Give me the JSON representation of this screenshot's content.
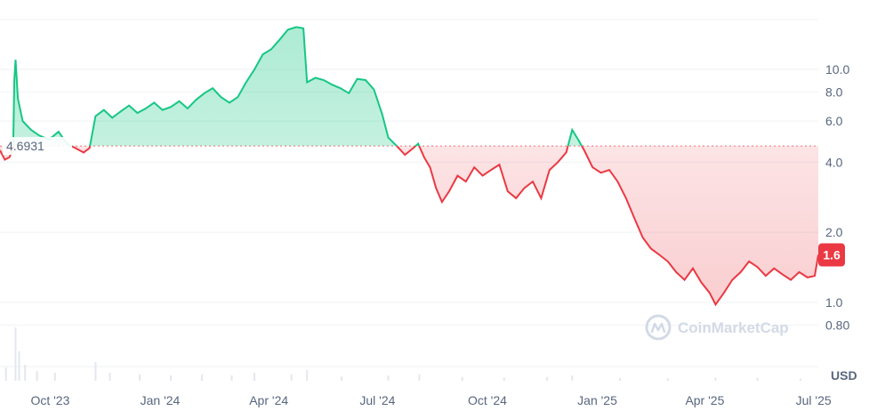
{
  "chart_data": {
    "type": "area",
    "baseline": {
      "value": 4.6931,
      "label": "4.6931"
    },
    "current_price": {
      "value": 1.6,
      "label": "1.6"
    },
    "y_axis": {
      "scale": "log",
      "ticks": [
        {
          "value": 10.0,
          "label": "10.0"
        },
        {
          "value": 8.0,
          "label": "8.0"
        },
        {
          "value": 6.0,
          "label": "6.0"
        },
        {
          "value": 4.0,
          "label": "4.0"
        },
        {
          "value": 2.0,
          "label": "2.0"
        },
        {
          "value": 1.0,
          "label": "1.0"
        },
        {
          "value": 0.8,
          "label": "0.80"
        }
      ],
      "unit": "USD"
    },
    "x_axis": {
      "ticks": [
        "Oct '23",
        "Jan '24",
        "Apr '24",
        "Jul '24",
        "Oct '24",
        "Jan '25",
        "Apr '25",
        "Jul '25"
      ]
    },
    "x_range": [
      "2023-08-20",
      "2025-07-05"
    ],
    "series": [
      {
        "points": [
          [
            "2023-08-20",
            4.5
          ],
          [
            "2023-08-24",
            4.1
          ],
          [
            "2023-08-28",
            4.2
          ],
          [
            "2023-08-31",
            4.6
          ],
          [
            "2023-09-01",
            9.0
          ],
          [
            "2023-09-02",
            11.0
          ],
          [
            "2023-09-04",
            7.5
          ],
          [
            "2023-09-08",
            6.0
          ],
          [
            "2023-09-15",
            5.5
          ],
          [
            "2023-09-22",
            5.2
          ],
          [
            "2023-09-30",
            5.0
          ],
          [
            "2023-10-08",
            5.4
          ],
          [
            "2023-10-15",
            4.8
          ],
          [
            "2023-10-22",
            4.6
          ],
          [
            "2023-10-29",
            4.4
          ],
          [
            "2023-11-03",
            4.6
          ],
          [
            "2023-11-08",
            6.3
          ],
          [
            "2023-11-15",
            6.7
          ],
          [
            "2023-11-22",
            6.2
          ],
          [
            "2023-11-29",
            6.6
          ],
          [
            "2023-12-06",
            7.0
          ],
          [
            "2023-12-13",
            6.5
          ],
          [
            "2023-12-20",
            6.8
          ],
          [
            "2023-12-27",
            7.2
          ],
          [
            "2024-01-03",
            6.7
          ],
          [
            "2024-01-10",
            6.9
          ],
          [
            "2024-01-17",
            7.3
          ],
          [
            "2024-01-24",
            6.8
          ],
          [
            "2024-01-31",
            7.4
          ],
          [
            "2024-02-07",
            7.9
          ],
          [
            "2024-02-14",
            8.3
          ],
          [
            "2024-02-21",
            7.6
          ],
          [
            "2024-02-28",
            7.2
          ],
          [
            "2024-03-06",
            7.6
          ],
          [
            "2024-03-13",
            8.8
          ],
          [
            "2024-03-20",
            10.0
          ],
          [
            "2024-03-27",
            11.6
          ],
          [
            "2024-04-03",
            12.2
          ],
          [
            "2024-04-10",
            13.4
          ],
          [
            "2024-04-17",
            14.8
          ],
          [
            "2024-04-24",
            15.2
          ],
          [
            "2024-04-30",
            15.0
          ],
          [
            "2024-05-03",
            8.8
          ],
          [
            "2024-05-10",
            9.2
          ],
          [
            "2024-05-17",
            9.0
          ],
          [
            "2024-05-24",
            8.6
          ],
          [
            "2024-05-31",
            8.3
          ],
          [
            "2024-06-07",
            7.9
          ],
          [
            "2024-06-14",
            9.1
          ],
          [
            "2024-06-21",
            9.0
          ],
          [
            "2024-06-28",
            8.2
          ],
          [
            "2024-07-05",
            6.4
          ],
          [
            "2024-07-10",
            5.1
          ],
          [
            "2024-07-17",
            4.7
          ],
          [
            "2024-07-24",
            4.3
          ],
          [
            "2024-07-31",
            4.6
          ],
          [
            "2024-08-04",
            4.8
          ],
          [
            "2024-08-09",
            4.2
          ],
          [
            "2024-08-14",
            3.8
          ],
          [
            "2024-08-19",
            3.1
          ],
          [
            "2024-08-24",
            2.7
          ],
          [
            "2024-08-30",
            3.0
          ],
          [
            "2024-09-06",
            3.5
          ],
          [
            "2024-09-13",
            3.3
          ],
          [
            "2024-09-20",
            3.8
          ],
          [
            "2024-09-27",
            3.5
          ],
          [
            "2024-10-04",
            3.7
          ],
          [
            "2024-10-11",
            3.9
          ],
          [
            "2024-10-18",
            3.0
          ],
          [
            "2024-10-25",
            2.8
          ],
          [
            "2024-11-01",
            3.1
          ],
          [
            "2024-11-08",
            3.3
          ],
          [
            "2024-11-15",
            2.8
          ],
          [
            "2024-11-22",
            3.7
          ],
          [
            "2024-11-29",
            4.0
          ],
          [
            "2024-12-06",
            4.4
          ],
          [
            "2024-12-11",
            5.5
          ],
          [
            "2024-12-16",
            5.0
          ],
          [
            "2024-12-21",
            4.5
          ],
          [
            "2024-12-28",
            3.8
          ],
          [
            "2025-01-04",
            3.6
          ],
          [
            "2025-01-11",
            3.7
          ],
          [
            "2025-01-18",
            3.3
          ],
          [
            "2025-01-25",
            2.8
          ],
          [
            "2025-02-01",
            2.3
          ],
          [
            "2025-02-08",
            1.9
          ],
          [
            "2025-02-15",
            1.7
          ],
          [
            "2025-02-22",
            1.6
          ],
          [
            "2025-03-01",
            1.5
          ],
          [
            "2025-03-08",
            1.35
          ],
          [
            "2025-03-15",
            1.25
          ],
          [
            "2025-03-22",
            1.4
          ],
          [
            "2025-03-29",
            1.22
          ],
          [
            "2025-04-05",
            1.1
          ],
          [
            "2025-04-10",
            0.98
          ],
          [
            "2025-04-17",
            1.1
          ],
          [
            "2025-04-24",
            1.25
          ],
          [
            "2025-05-01",
            1.35
          ],
          [
            "2025-05-08",
            1.5
          ],
          [
            "2025-05-15",
            1.42
          ],
          [
            "2025-05-22",
            1.3
          ],
          [
            "2025-05-29",
            1.4
          ],
          [
            "2025-06-05",
            1.32
          ],
          [
            "2025-06-12",
            1.25
          ],
          [
            "2025-06-19",
            1.35
          ],
          [
            "2025-06-26",
            1.28
          ],
          [
            "2025-07-02",
            1.3
          ],
          [
            "2025-07-05",
            1.6
          ]
        ]
      }
    ],
    "volume": [
      {
        "date": "2023-08-25",
        "rel": 0.25
      },
      {
        "date": "2023-09-02",
        "rel": 1.0
      },
      {
        "date": "2023-09-05",
        "rel": 0.55
      },
      {
        "date": "2023-09-10",
        "rel": 0.3
      },
      {
        "date": "2023-09-20",
        "rel": 0.18
      },
      {
        "date": "2023-10-05",
        "rel": 0.15
      },
      {
        "date": "2023-11-08",
        "rel": 0.35
      },
      {
        "date": "2023-11-20",
        "rel": 0.15
      },
      {
        "date": "2023-12-15",
        "rel": 0.12
      },
      {
        "date": "2024-01-10",
        "rel": 0.1
      },
      {
        "date": "2024-02-05",
        "rel": 0.12
      },
      {
        "date": "2024-03-01",
        "rel": 0.1
      },
      {
        "date": "2024-03-20",
        "rel": 0.15
      },
      {
        "date": "2024-04-20",
        "rel": 0.12
      },
      {
        "date": "2024-05-03",
        "rel": 0.2
      },
      {
        "date": "2024-06-01",
        "rel": 0.08
      },
      {
        "date": "2024-07-10",
        "rel": 0.1
      },
      {
        "date": "2024-08-05",
        "rel": 0.12
      },
      {
        "date": "2024-09-10",
        "rel": 0.07
      },
      {
        "date": "2024-10-15",
        "rel": 0.06
      },
      {
        "date": "2024-11-20",
        "rel": 0.07
      },
      {
        "date": "2024-12-11",
        "rel": 0.1
      },
      {
        "date": "2025-01-20",
        "rel": 0.05
      },
      {
        "date": "2025-03-01",
        "rel": 0.05
      },
      {
        "date": "2025-04-10",
        "rel": 0.06
      },
      {
        "date": "2025-05-15",
        "rel": 0.05
      },
      {
        "date": "2025-06-20",
        "rel": 0.04
      }
    ],
    "watermark": "CoinMarketCap",
    "grid": true,
    "colors": {
      "up": "#16c784",
      "down": "#ea3943",
      "grid": "#eff2f5",
      "axis_text": "#58667e",
      "baseline_dash": "#ea3943",
      "volume": "#e3e7ee"
    }
  }
}
